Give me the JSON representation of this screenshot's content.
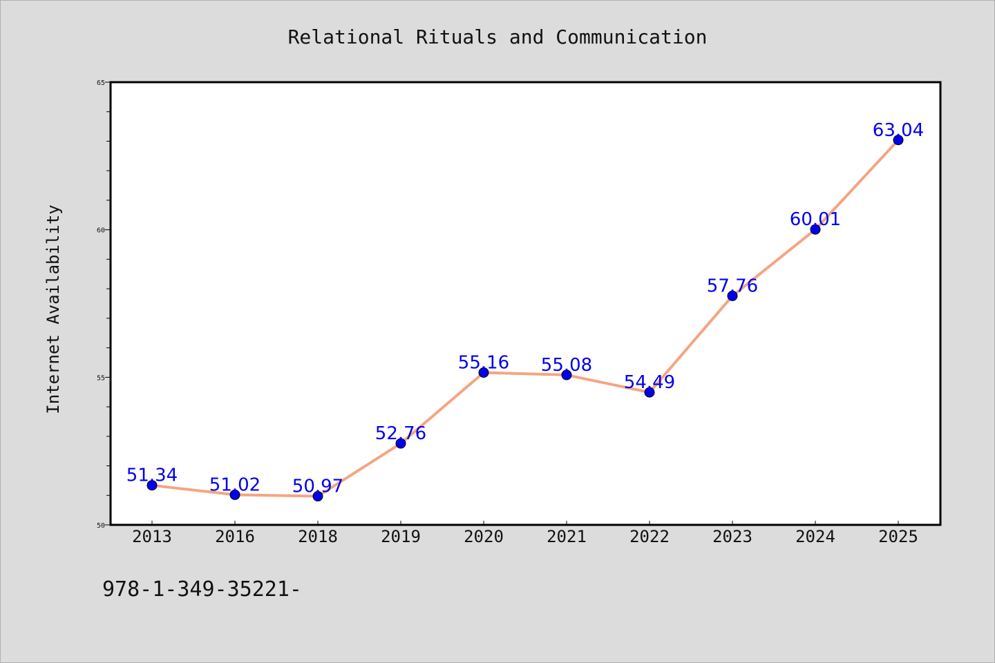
{
  "chart_data": {
    "type": "line",
    "title": "Relational Rituals and Communication",
    "xlabel": "",
    "ylabel": "Internet Availability",
    "categories": [
      "2013",
      "2016",
      "2018",
      "2019",
      "2020",
      "2021",
      "2022",
      "2023",
      "2024",
      "2025"
    ],
    "values": [
      51.34,
      51.02,
      50.97,
      52.76,
      55.16,
      55.08,
      54.49,
      57.76,
      60.01,
      63.04
    ],
    "data_labels": [
      "51.34",
      "51.02",
      "50.97",
      "52.76",
      "55.16",
      "55.08",
      "54.49",
      "57.76",
      "60.01",
      "63.04"
    ],
    "ylim": [
      50,
      65
    ],
    "yticks": [
      50,
      55,
      60,
      65
    ],
    "grid": false,
    "legend": "none",
    "line_color": "#f4a582",
    "marker_color": "#0000ee",
    "label_color": "#0000ee"
  },
  "footer_text": "978-1-349-35221-"
}
